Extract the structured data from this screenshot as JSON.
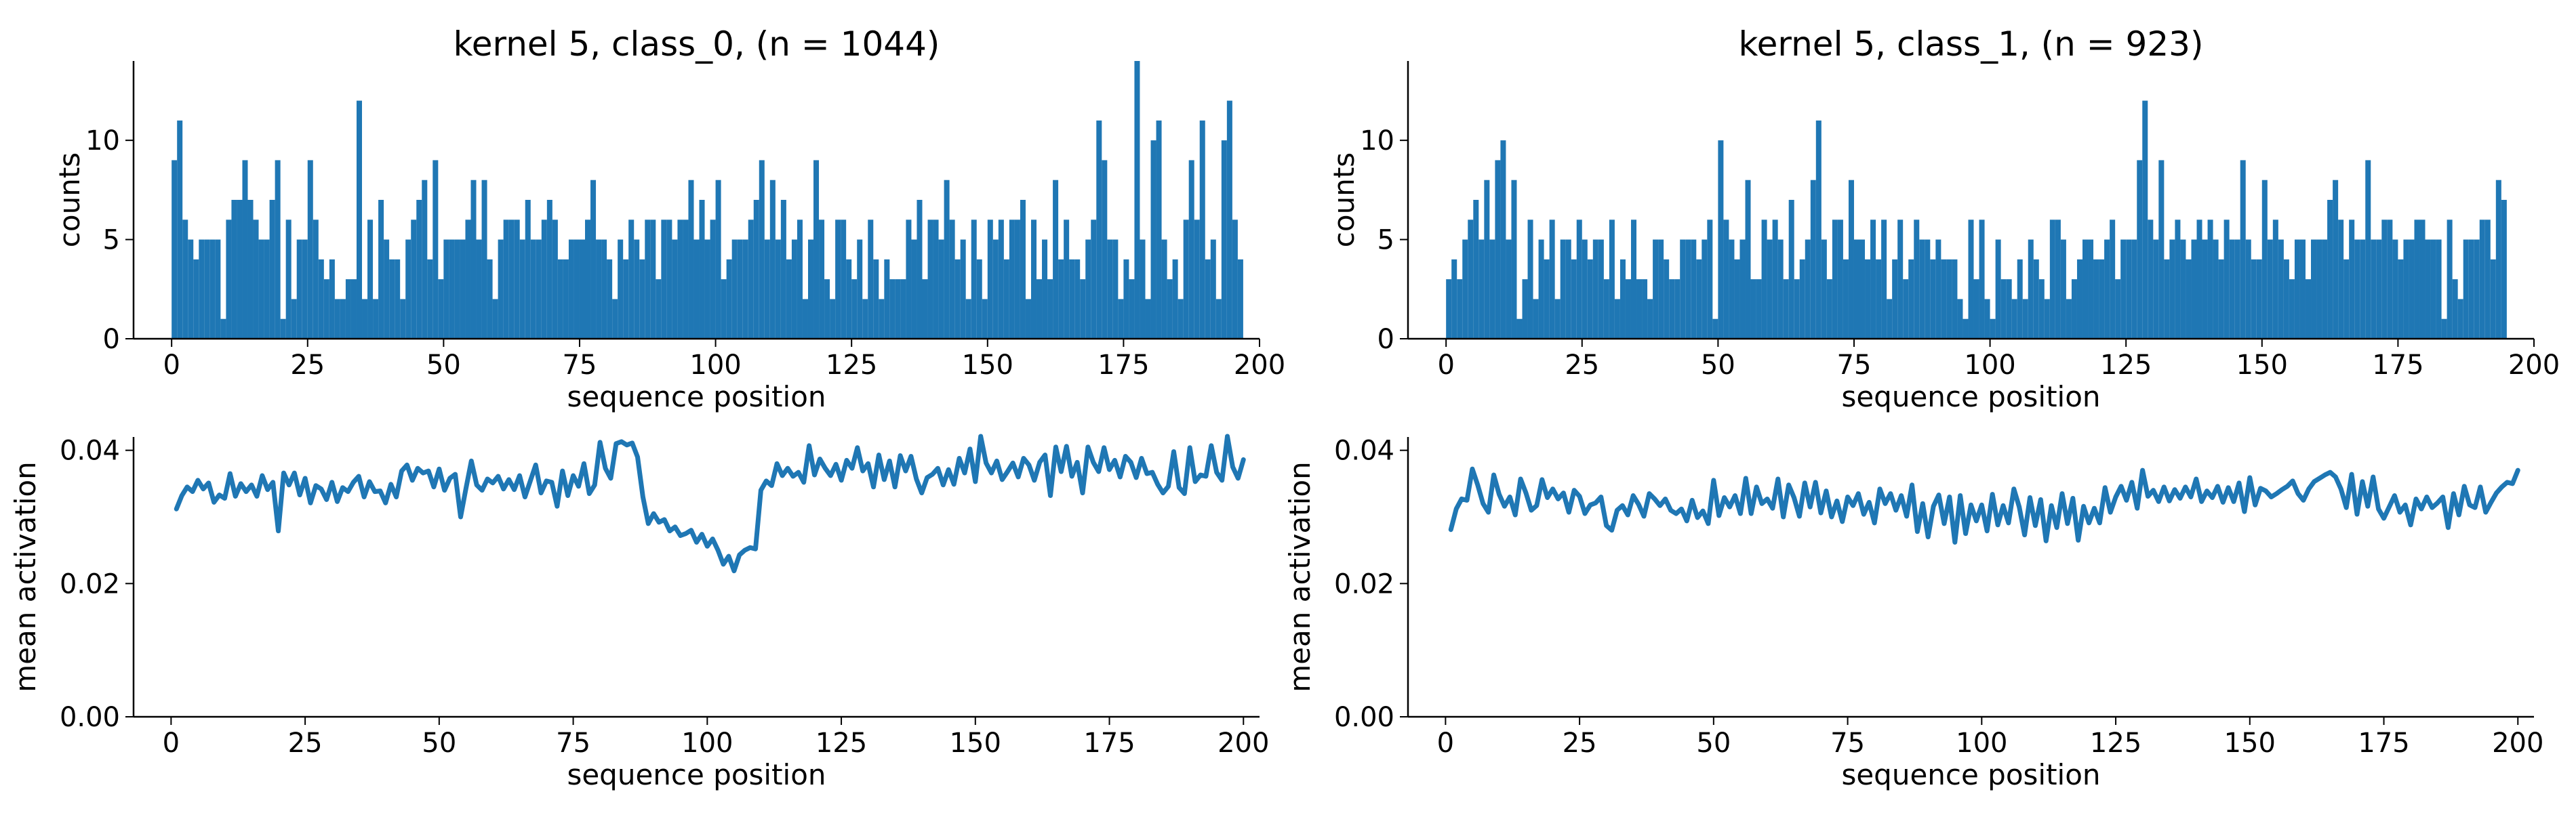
{
  "colors": {
    "series": "#1f77b4",
    "axis": "#000000",
    "background": "#ffffff"
  },
  "chart_data": [
    {
      "type": "bar",
      "panel": "top-left",
      "title": "kernel 5, class_0, (n = 1044)",
      "xlabel": "sequence position",
      "ylabel": "counts",
      "xlim": [
        -7,
        200
      ],
      "ylim": [
        0,
        14
      ],
      "xticks": [
        0,
        25,
        50,
        75,
        100,
        125,
        150,
        175,
        200
      ],
      "yticks": [
        0,
        5,
        10
      ],
      "grid": false,
      "bin_start": 0,
      "bin_width": 1,
      "values": [
        9,
        11,
        6,
        5,
        4,
        5,
        5,
        5,
        5,
        1,
        6,
        7,
        7,
        9,
        7,
        6,
        5,
        5,
        7,
        9,
        1,
        6,
        2,
        5,
        5,
        9,
        6,
        4,
        3,
        4,
        2,
        2,
        3,
        3,
        12,
        2,
        6,
        2,
        7,
        5,
        4,
        4,
        2,
        5,
        6,
        7,
        8,
        4,
        9,
        3,
        5,
        5,
        5,
        5,
        6,
        8,
        5,
        8,
        4,
        2,
        5,
        6,
        6,
        6,
        5,
        7,
        5,
        5,
        6,
        7,
        6,
        4,
        4,
        5,
        5,
        5,
        6,
        8,
        5,
        5,
        4,
        2,
        5,
        4,
        6,
        5,
        4,
        6,
        6,
        3,
        6,
        6,
        5,
        6,
        6,
        8,
        5,
        7,
        5,
        6,
        8,
        3,
        4,
        5,
        5,
        5,
        6,
        7,
        9,
        5,
        8,
        5,
        7,
        4,
        5,
        6,
        2,
        5,
        9,
        6,
        3,
        2,
        6,
        6,
        4,
        3,
        5,
        2,
        6,
        4,
        2,
        4,
        3,
        3,
        3,
        6,
        5,
        7,
        3,
        6,
        6,
        5,
        8,
        6,
        4,
        5,
        2,
        6,
        4,
        2,
        6,
        5,
        6,
        4,
        6,
        6,
        7,
        2,
        6,
        3,
        5,
        3,
        8,
        4,
        6,
        4,
        4,
        3,
        5,
        6,
        11,
        9,
        5,
        5,
        2,
        4,
        3,
        14,
        5,
        2,
        10,
        11,
        5,
        3,
        4,
        2,
        6,
        9,
        6,
        11,
        4,
        5,
        2,
        10,
        12,
        6,
        4
      ]
    },
    {
      "type": "bar",
      "panel": "top-right",
      "title": "kernel 5, class_1, (n = 923)",
      "xlabel": "sequence position",
      "ylabel": "counts",
      "xlim": [
        -7,
        200
      ],
      "ylim": [
        0,
        14
      ],
      "xticks": [
        0,
        25,
        50,
        75,
        100,
        125,
        150,
        175,
        200
      ],
      "yticks": [
        0,
        5,
        10
      ],
      "grid": false,
      "bin_start": 0,
      "bin_width": 1,
      "values": [
        3,
        4,
        3,
        5,
        6,
        7,
        5,
        8,
        5,
        9,
        10,
        5,
        8,
        1,
        3,
        6,
        2,
        5,
        4,
        6,
        2,
        5,
        5,
        4,
        6,
        5,
        4,
        5,
        5,
        3,
        6,
        2,
        4,
        3,
        6,
        3,
        3,
        2,
        5,
        5,
        4,
        3,
        3,
        5,
        5,
        5,
        4,
        5,
        6,
        1,
        10,
        6,
        5,
        4,
        5,
        8,
        3,
        3,
        6,
        5,
        6,
        5,
        3,
        7,
        3,
        4,
        5,
        8,
        11,
        5,
        3,
        6,
        6,
        4,
        8,
        5,
        5,
        4,
        6,
        4,
        6,
        2,
        4,
        6,
        3,
        4,
        6,
        5,
        5,
        4,
        5,
        4,
        4,
        4,
        2,
        1,
        6,
        3,
        6,
        2,
        1,
        5,
        3,
        3,
        2,
        4,
        2,
        5,
        4,
        3,
        2,
        6,
        6,
        5,
        2,
        3,
        4,
        5,
        5,
        4,
        4,
        5,
        6,
        3,
        5,
        5,
        5,
        9,
        12,
        6,
        5,
        9,
        4,
        5,
        6,
        5,
        4,
        5,
        6,
        5,
        6,
        5,
        4,
        6,
        5,
        5,
        9,
        5,
        4,
        4,
        8,
        5,
        6,
        5,
        4,
        3,
        5,
        5,
        3,
        5,
        5,
        5,
        7,
        8,
        6,
        4,
        6,
        5,
        5,
        9,
        5,
        5,
        6,
        6,
        5,
        4,
        5,
        5,
        6,
        6,
        5,
        5,
        5,
        1,
        6,
        3,
        2,
        5,
        5,
        5,
        6,
        6,
        4,
        8,
        7
      ]
    },
    {
      "type": "line",
      "panel": "bottom-left",
      "title": "",
      "xlabel": "sequence position",
      "ylabel": "mean activation",
      "xlim": [
        -7,
        203
      ],
      "ylim": [
        0,
        0.042
      ],
      "xticks": [
        0,
        25,
        50,
        75,
        100,
        125,
        150,
        175,
        200
      ],
      "yticks": [
        0.0,
        0.02,
        0.04
      ],
      "ytick_labels": [
        "0.00",
        "0.02",
        "0.04"
      ],
      "grid": false,
      "x_start": 1,
      "x_step": 1,
      "values": [
        0.0312,
        0.0332,
        0.0345,
        0.0338,
        0.0355,
        0.0342,
        0.0351,
        0.0322,
        0.0333,
        0.0328,
        0.0365,
        0.0331,
        0.035,
        0.0338,
        0.0348,
        0.0331,
        0.0362,
        0.0341,
        0.0352,
        0.0279,
        0.0366,
        0.0348,
        0.0366,
        0.0333,
        0.0358,
        0.0321,
        0.0347,
        0.0342,
        0.0326,
        0.0352,
        0.0323,
        0.0344,
        0.0338,
        0.0352,
        0.0361,
        0.033,
        0.0353,
        0.0338,
        0.0339,
        0.0321,
        0.0349,
        0.033,
        0.0369,
        0.0378,
        0.0355,
        0.0373,
        0.0366,
        0.0369,
        0.0345,
        0.0372,
        0.034,
        0.0358,
        0.0364,
        0.03,
        0.0343,
        0.0384,
        0.0348,
        0.034,
        0.0357,
        0.0351,
        0.0361,
        0.0342,
        0.0356,
        0.0341,
        0.0362,
        0.033,
        0.0354,
        0.0378,
        0.0336,
        0.0354,
        0.0352,
        0.0316,
        0.0369,
        0.0332,
        0.0362,
        0.0346,
        0.038,
        0.0335,
        0.0348,
        0.0412,
        0.0373,
        0.0358,
        0.041,
        0.0413,
        0.0408,
        0.0411,
        0.039,
        0.033,
        0.029,
        0.0305,
        0.0292,
        0.0296,
        0.0279,
        0.0285,
        0.0272,
        0.0275,
        0.028,
        0.0262,
        0.0274,
        0.0256,
        0.0267,
        0.025,
        0.0229,
        0.0241,
        0.0219,
        0.0243,
        0.025,
        0.0254,
        0.0252,
        0.034,
        0.0354,
        0.0347,
        0.038,
        0.0362,
        0.0373,
        0.0361,
        0.0367,
        0.0352,
        0.0407,
        0.0363,
        0.0387,
        0.0373,
        0.0362,
        0.0379,
        0.0355,
        0.0385,
        0.0373,
        0.0404,
        0.0369,
        0.038,
        0.0345,
        0.0393,
        0.0356,
        0.0384,
        0.0345,
        0.0392,
        0.0369,
        0.0391,
        0.0357,
        0.0336,
        0.0359,
        0.0364,
        0.0373,
        0.0348,
        0.0371,
        0.0349,
        0.0388,
        0.0366,
        0.0402,
        0.0353,
        0.0421,
        0.0381,
        0.0366,
        0.0384,
        0.0356,
        0.0368,
        0.0381,
        0.036,
        0.0388,
        0.0378,
        0.0355,
        0.0382,
        0.0393,
        0.0332,
        0.0405,
        0.0368,
        0.0406,
        0.0361,
        0.0382,
        0.0336,
        0.0405,
        0.0382,
        0.0368,
        0.0404,
        0.0371,
        0.0385,
        0.036,
        0.0391,
        0.0382,
        0.0359,
        0.0388,
        0.0365,
        0.0367,
        0.0349,
        0.0336,
        0.0346,
        0.0398,
        0.0344,
        0.0335,
        0.0404,
        0.0353,
        0.0363,
        0.0361,
        0.0407,
        0.0367,
        0.0355,
        0.0421,
        0.0375,
        0.0358,
        0.0386
      ]
    },
    {
      "type": "line",
      "panel": "bottom-right",
      "title": "",
      "xlabel": "sequence position",
      "ylabel": "mean activation",
      "xlim": [
        -7,
        203
      ],
      "ylim": [
        0,
        0.042
      ],
      "xticks": [
        0,
        25,
        50,
        75,
        100,
        125,
        150,
        175,
        200
      ],
      "yticks": [
        0.0,
        0.02,
        0.04
      ],
      "ytick_labels": [
        "0.00",
        "0.02",
        "0.04"
      ],
      "grid": false,
      "x_start": 1,
      "x_step": 1,
      "values": [
        0.0281,
        0.0312,
        0.0327,
        0.0325,
        0.0372,
        0.0348,
        0.032,
        0.0307,
        0.0363,
        0.0334,
        0.0316,
        0.033,
        0.0303,
        0.0357,
        0.0336,
        0.031,
        0.0317,
        0.0356,
        0.0329,
        0.0342,
        0.0327,
        0.0336,
        0.0307,
        0.034,
        0.0331,
        0.0305,
        0.0318,
        0.0321,
        0.033,
        0.0287,
        0.028,
        0.031,
        0.0317,
        0.0303,
        0.0332,
        0.0319,
        0.0301,
        0.0335,
        0.0327,
        0.0317,
        0.0327,
        0.031,
        0.0305,
        0.0312,
        0.0294,
        0.0325,
        0.0299,
        0.0309,
        0.029,
        0.0355,
        0.0302,
        0.0329,
        0.0315,
        0.0332,
        0.0305,
        0.0358,
        0.0305,
        0.0345,
        0.032,
        0.0327,
        0.0313,
        0.0357,
        0.03,
        0.0348,
        0.0329,
        0.0301,
        0.0351,
        0.0315,
        0.0352,
        0.0306,
        0.0339,
        0.03,
        0.0324,
        0.0293,
        0.033,
        0.0317,
        0.0335,
        0.0304,
        0.0322,
        0.0291,
        0.0342,
        0.032,
        0.0335,
        0.031,
        0.0332,
        0.0301,
        0.0348,
        0.0278,
        0.032,
        0.027,
        0.0316,
        0.0333,
        0.029,
        0.033,
        0.0262,
        0.0332,
        0.0275,
        0.0318,
        0.0294,
        0.0318,
        0.0279,
        0.0334,
        0.0288,
        0.0317,
        0.0291,
        0.0342,
        0.0315,
        0.0273,
        0.0329,
        0.0287,
        0.0326,
        0.0264,
        0.0317,
        0.0284,
        0.0335,
        0.029,
        0.0328,
        0.0265,
        0.0316,
        0.0291,
        0.0313,
        0.0291,
        0.0344,
        0.0307,
        0.033,
        0.0346,
        0.0325,
        0.0352,
        0.0313,
        0.037,
        0.0331,
        0.034,
        0.0323,
        0.0345,
        0.0324,
        0.0341,
        0.0328,
        0.0345,
        0.033,
        0.0357,
        0.0323,
        0.0339,
        0.0329,
        0.0346,
        0.0322,
        0.0344,
        0.0323,
        0.0351,
        0.0308,
        0.0359,
        0.0318,
        0.0343,
        0.0339,
        0.033,
        0.0335,
        0.0341,
        0.0346,
        0.0354,
        0.0335,
        0.0325,
        0.0342,
        0.0353,
        0.0358,
        0.0363,
        0.0367,
        0.036,
        0.0342,
        0.0314,
        0.0364,
        0.0304,
        0.0353,
        0.0316,
        0.036,
        0.0312,
        0.0298,
        0.0315,
        0.0332,
        0.0307,
        0.0318,
        0.0288,
        0.0327,
        0.0312,
        0.033,
        0.0314,
        0.0321,
        0.033,
        0.0284,
        0.0335,
        0.0303,
        0.0346,
        0.0318,
        0.0314,
        0.0345,
        0.0307,
        0.0322,
        0.0336,
        0.0345,
        0.0352,
        0.035,
        0.037
      ]
    }
  ]
}
